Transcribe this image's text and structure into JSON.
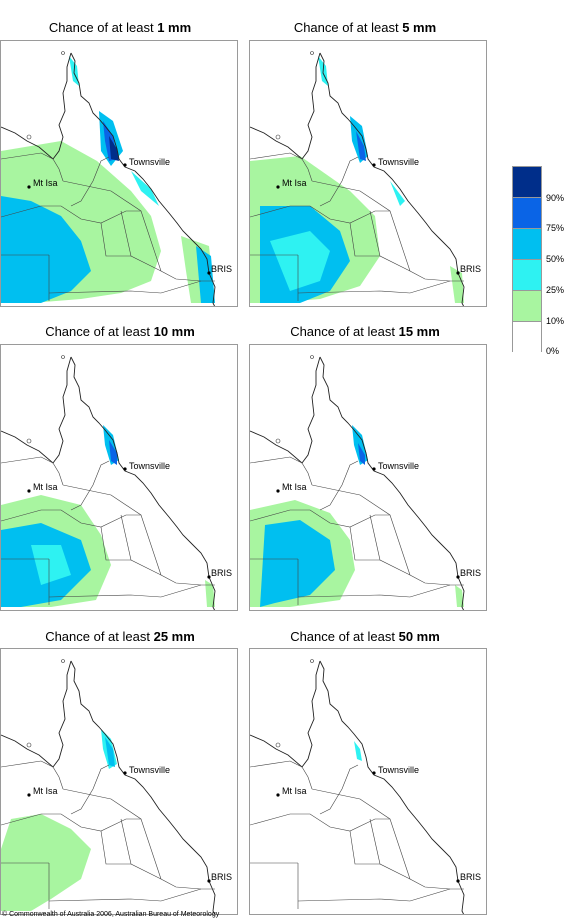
{
  "panels": [
    {
      "prefix": "Chance of at least ",
      "value": "1 mm",
      "level": 1
    },
    {
      "prefix": "Chance of at least ",
      "value": "5 mm",
      "level": 2
    },
    {
      "prefix": "Chance of at least ",
      "value": "10 mm",
      "level": 3
    },
    {
      "prefix": "Chance of at least ",
      "value": "15 mm",
      "level": 4
    },
    {
      "prefix": "Chance of at least ",
      "value": "25 mm",
      "level": 5
    },
    {
      "prefix": "Chance of at least ",
      "value": "50 mm",
      "level": 6
    }
  ],
  "places": {
    "townsville": "Townsville",
    "mt_isa": "Mt Isa",
    "bris": "BRIS"
  },
  "legend": {
    "labels": [
      "90%",
      "75%",
      "50%",
      "25%",
      "10%",
      "0%"
    ],
    "colors": [
      "#002e8a",
      "#0a64e6",
      "#00bff0",
      "#2ef2f2",
      "#a8f5a0",
      "#ffffff"
    ]
  },
  "footer": "© Commonwealth of Australia 2006, Australian Bureau of Meteorology"
}
